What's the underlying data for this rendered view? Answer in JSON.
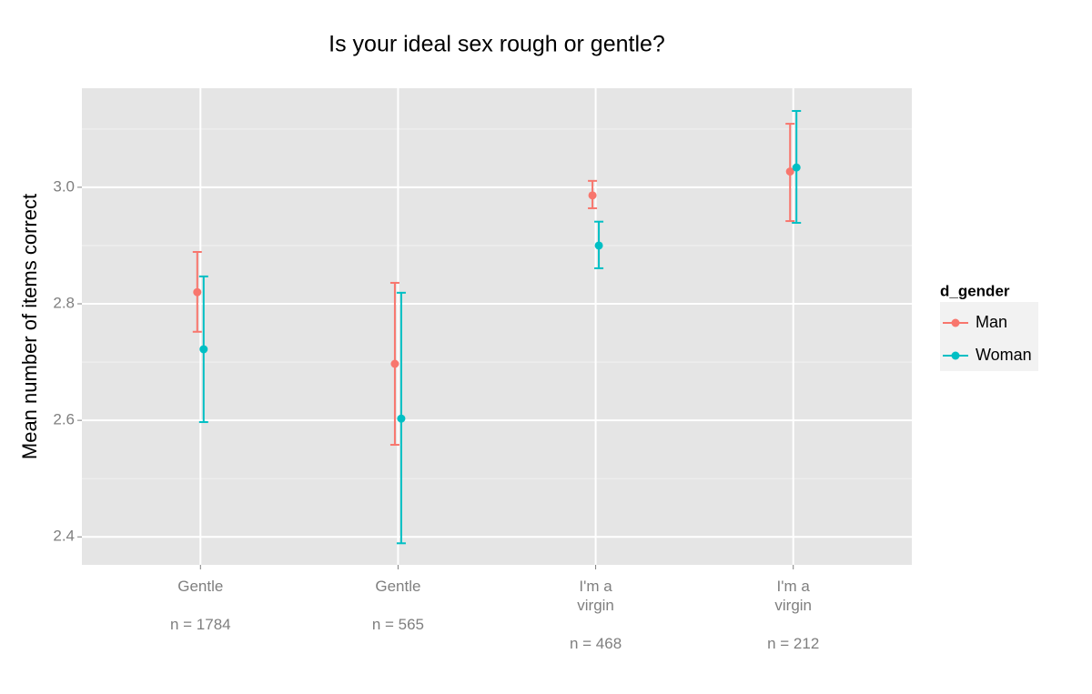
{
  "chart_data": {
    "type": "errorbar",
    "title": "Is your ideal sex rough or gentle?",
    "y_label": "Mean number of items correct",
    "categories": [
      "Gentle\n\nn = 1784",
      "Gentle\n\nn = 565",
      "I'm a\nvirgin\n\nn = 468",
      "I'm a\nvirgin\n\nn = 212"
    ],
    "legend_title": "d_gender",
    "series": [
      {
        "name": "Man",
        "color": "#F8766D",
        "values": [
          2.82,
          2.697,
          2.986,
          3.027
        ],
        "lower": [
          2.752,
          2.558,
          2.964,
          2.942
        ],
        "upper": [
          2.889,
          2.836,
          3.011,
          3.109
        ]
      },
      {
        "name": "Woman",
        "color": "#00BFC4",
        "values": [
          2.722,
          2.603,
          2.9,
          3.034
        ],
        "lower": [
          2.597,
          2.389,
          2.861,
          2.939
        ],
        "upper": [
          2.847,
          2.819,
          2.941,
          3.131
        ]
      }
    ],
    "ylim": [
      2.352,
      3.17
    ],
    "yticks": [
      2.4,
      2.6,
      2.8,
      {
        "value": 3,
        "label": "3.0"
      }
    ],
    "grid": true
  }
}
